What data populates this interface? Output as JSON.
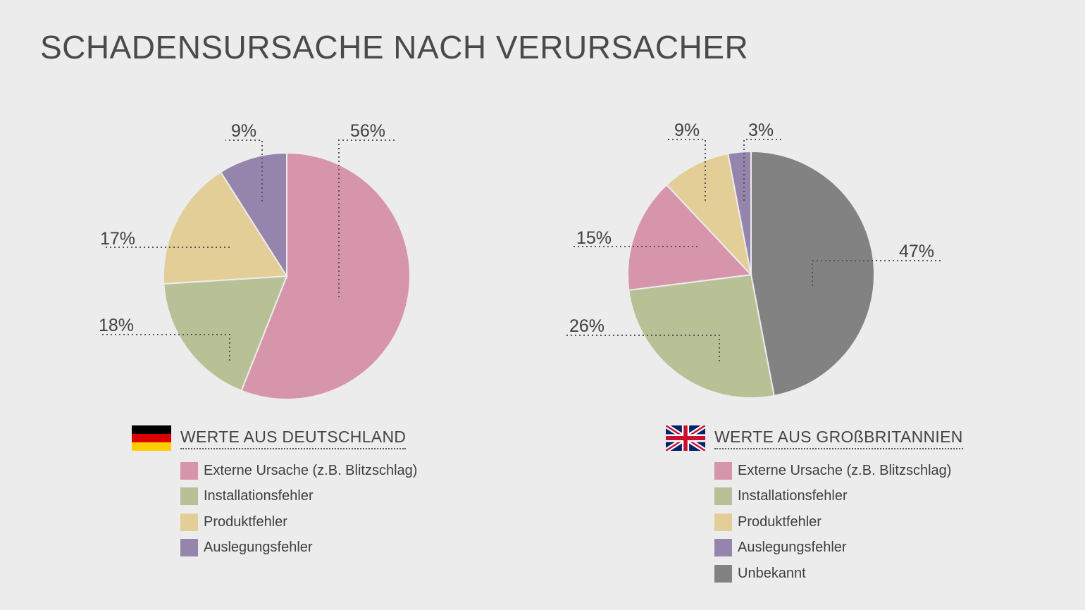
{
  "title": "SCHADENSURSACHE NACH VERURSACHER",
  "colors": {
    "Externe Ursache (z.B. Blitzschlag)": "#d795ab",
    "Installationsfehler": "#b8c195",
    "Produktfehler": "#e2ce96",
    "Auslegungsfehler": "#9585ad",
    "Unbekannt": "#828282"
  },
  "chart_data": [
    {
      "type": "pie",
      "legend_title": "WERTE AUS DEUTSCHLAND",
      "flag": "germany-flag",
      "categories": [
        "Externe Ursache (z.B. Blitzschlag)",
        "Installationsfehler",
        "Produktfehler",
        "Auslegungsfehler"
      ],
      "values": [
        56,
        18,
        17,
        9
      ],
      "labels": [
        "56%",
        "18%",
        "17%",
        "9%"
      ]
    },
    {
      "type": "pie",
      "legend_title": "WERTE AUS GROßBRITANNIEN",
      "flag": "uk-flag",
      "categories": [
        "Unbekannt",
        "Installationsfehler",
        "Externe Ursache (z.B. Blitzschlag)",
        "Produktfehler",
        "Auslegungsfehler"
      ],
      "values": [
        47,
        26,
        15,
        9,
        3
      ],
      "labels": [
        "47%",
        "26%",
        "15%",
        "9%",
        "3%"
      ],
      "legend_order": [
        "Externe Ursache (z.B. Blitzschlag)",
        "Installationsfehler",
        "Produktfehler",
        "Auslegungsfehler",
        "Unbekannt"
      ]
    }
  ]
}
